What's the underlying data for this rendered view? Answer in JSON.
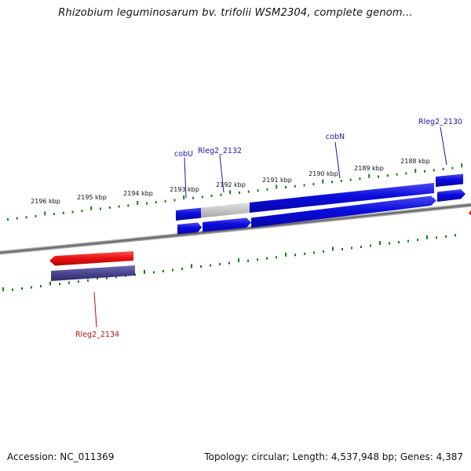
{
  "header": {
    "title": "Rhizobium leguminosarum bv. trifolii WSM2304, complete genom..."
  },
  "footer": {
    "accession": "Accession: NC_011369",
    "stats": "Topology: circular; Length: 4,537,948 bp; Genes: 4,387"
  },
  "map": {
    "colors": {
      "backbone": "#808080",
      "ticks": "#1a7a1a",
      "forward_gene": "#0b0bdd",
      "reverse_gene": "#e81010",
      "reverse_cds": "#4a4690",
      "pseudo": "#c6c6c6",
      "forward_label": "#1616b0",
      "reverse_label": "#bb1111"
    },
    "upper_ticks": [
      "2196 kbp",
      "2195 kbp",
      "2194 kbp",
      "2193 kbp",
      "2192 kbp",
      "2191 kbp",
      "2190 kbp",
      "2189 kbp",
      "2188 kbp"
    ],
    "gene_labels": [
      {
        "name": "cobU",
        "strand": "forward"
      },
      {
        "name": "Rleg2_2132",
        "strand": "forward"
      },
      {
        "name": "cobN",
        "strand": "forward"
      },
      {
        "name": "Rleg2_2130",
        "strand": "forward"
      },
      {
        "name": "Rleg2_2134",
        "strand": "reverse"
      }
    ]
  }
}
